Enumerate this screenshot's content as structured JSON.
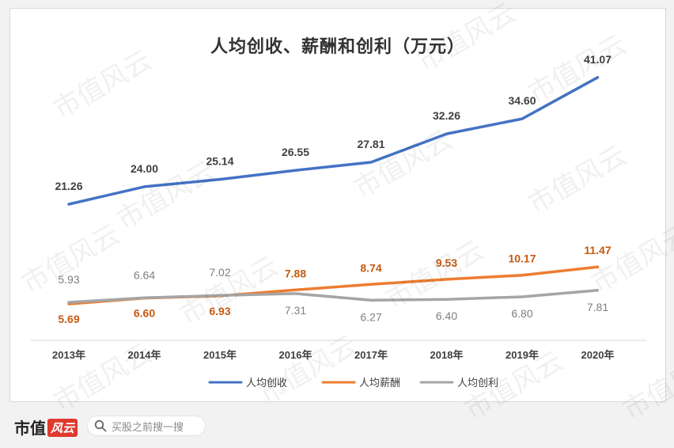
{
  "colors": {
    "series_blue": "#4472C4",
    "series_orange": "#ED7D31",
    "series_gray": "#A5A5A5",
    "label_dark": "#404040",
    "label_orange": "#C55A11",
    "label_gray": "#7F7F7F"
  },
  "watermark": {
    "text": "市值风云"
  },
  "footer": {
    "brand_text": "市值",
    "brand_badge": "风云",
    "search_placeholder": "买股之前搜一搜"
  },
  "chart_data": {
    "type": "line",
    "title": "人均创收、薪酬和创利（万元）",
    "categories": [
      "2013年",
      "2014年",
      "2015年",
      "2016年",
      "2017年",
      "2018年",
      "2019年",
      "2020年"
    ],
    "series": [
      {
        "name": "人均创收",
        "values": [
          21.26,
          24.0,
          25.14,
          26.55,
          27.81,
          32.26,
          34.6,
          41.07
        ]
      },
      {
        "name": "人均薪酬",
        "values": [
          5.69,
          6.6,
          6.93,
          7.88,
          8.74,
          9.53,
          10.17,
          11.47
        ]
      },
      {
        "name": "人均创利",
        "values": [
          5.93,
          6.64,
          7.02,
          7.31,
          6.27,
          6.4,
          6.8,
          7.81
        ]
      }
    ],
    "data_labels": [
      [
        "21.26",
        "24.00",
        "25.14",
        "26.55",
        "27.81",
        "32.26",
        "34.60",
        "41.07"
      ],
      [
        "5.69",
        "6.60",
        "6.93",
        "7.88",
        "8.74",
        "9.53",
        "10.17",
        "11.47"
      ],
      [
        "5.93",
        "6.64",
        "7.02",
        "7.31",
        "6.27",
        "6.40",
        "6.80",
        "7.81"
      ]
    ],
    "ylim": [
      0,
      45
    ],
    "grid": false,
    "legend_position": "bottom"
  }
}
